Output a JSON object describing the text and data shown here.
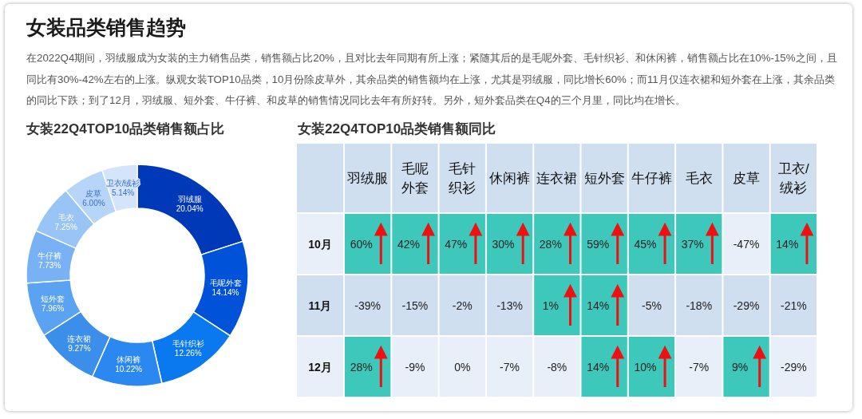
{
  "chart_data": [
    {
      "type": "other",
      "title": "女装品类销售趋势",
      "subtitle": "在2022Q4期间，羽绒服成为女装的主力销售品类，销售额占比20%，且对比去年同期有所上涨；紧随其后的是毛呢外套、毛针织衫、和休闲裤，销售额占比在10%-15%之间，且同比有30%-42%左右的上涨。纵观女装TOP10品类，10月份除皮草外，其余品类的销售额均在上涨，尤其是羽绒服，同比增长60%；而11月仅连衣裙和短外套在上涨，其余品类的同比下跌；到了12月，羽绒服、短外套、牛仔裤、和皮草的销售情况同比去年有所好转。另外，短外套品类在Q4的三个月里，同比均在增长。"
    },
    {
      "type": "donut",
      "title": "女装22Q4TOP10品类销售额占比",
      "categories": [
        "羽绒服",
        "毛呢外套",
        "毛针织衫",
        "休闲裤",
        "连衣裙",
        "短外套",
        "牛仔裤",
        "毛衣",
        "皮草",
        "卫衣/绒衫"
      ],
      "values": [
        20.04,
        14.14,
        12.26,
        10.22,
        9.27,
        7.96,
        7.73,
        7.25,
        6.0,
        5.14
      ],
      "value_labels": [
        "20.04%",
        "14.14%",
        "12.26%",
        "10.22%",
        "9.27%",
        "7.96%",
        "7.73%",
        "7.25%",
        "6.00%",
        "5.14%"
      ],
      "colors": [
        "#0039b8",
        "#0052d9",
        "#0a78ee",
        "#2a88f0",
        "#3c8eeb",
        "#5aa2f2",
        "#78b2f4",
        "#98c4f6",
        "#b7d5f8",
        "#d3e4fb"
      ]
    },
    {
      "type": "heatmap",
      "title": "女装22Q4TOP10品类销售额同比",
      "categories": [
        "羽绒服",
        "毛呢外套",
        "毛针织衫",
        "休闲裤",
        "连衣裙",
        "短外套",
        "牛仔裤",
        "毛衣",
        "皮草",
        "卫衣/绒衫"
      ],
      "y_categories": [
        "10月",
        "11月",
        "12月"
      ],
      "cells": [
        [
          60,
          42,
          47,
          30,
          28,
          59,
          45,
          37,
          -47,
          14
        ],
        [
          -39,
          -15,
          -2,
          -13,
          1,
          14,
          -5,
          -18,
          -29,
          -21
        ],
        [
          28,
          -9,
          0,
          -7,
          -8,
          14,
          10,
          -7,
          9,
          -29
        ]
      ],
      "cell_labels": [
        [
          "60%",
          "42%",
          "47%",
          "30%",
          "28%",
          "59%",
          "45%",
          "37%",
          "-47%",
          "14%"
        ],
        [
          "-39%",
          "-15%",
          "-2%",
          "-13%",
          "1%",
          "14%",
          "-5%",
          "-18%",
          "-29%",
          "-21%"
        ],
        [
          "28%",
          "-9%",
          "0%",
          "-7%",
          "-8%",
          "14%",
          "10%",
          "-7%",
          "9%",
          "-29%"
        ]
      ]
    }
  ]
}
